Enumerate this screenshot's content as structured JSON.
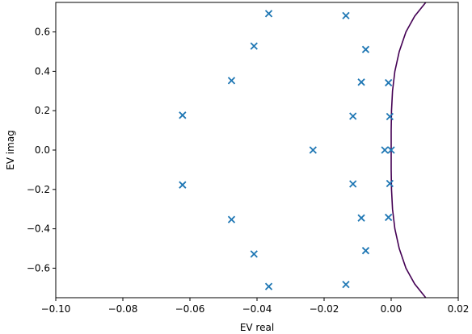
{
  "chart_data": {
    "type": "scatter",
    "xlabel": "EV real",
    "ylabel": "EV imag",
    "xlim": [
      -0.1,
      0.02
    ],
    "ylim": [
      -0.75,
      0.75
    ],
    "xticks": [
      -0.1,
      -0.08,
      -0.06,
      -0.04,
      -0.02,
      0.0,
      0.02
    ],
    "xtick_labels": [
      "−0.10",
      "−0.08",
      "−0.06",
      "−0.04",
      "−0.02",
      "0.00",
      "0.02"
    ],
    "yticks": [
      -0.6,
      -0.4,
      -0.2,
      0.0,
      0.2,
      0.4,
      0.6
    ],
    "ytick_labels": [
      "−0.6",
      "−0.4",
      "−0.2",
      "0.0",
      "0.2",
      "0.4",
      "0.6"
    ],
    "grid": false,
    "colors": {
      "markers": "#1f77b4",
      "curve": "#440154",
      "axes": "#000000"
    },
    "marker": "x",
    "points": [
      {
        "x": -0.0365,
        "y": 0.693
      },
      {
        "x": -0.0135,
        "y": 0.683
      },
      {
        "x": -0.0409,
        "y": 0.528
      },
      {
        "x": -0.0076,
        "y": 0.511
      },
      {
        "x": -0.0476,
        "y": 0.353
      },
      {
        "x": -0.0089,
        "y": 0.345
      },
      {
        "x": -0.0008,
        "y": 0.342
      },
      {
        "x": -0.0622,
        "y": 0.177
      },
      {
        "x": -0.0114,
        "y": 0.172
      },
      {
        "x": -0.0004,
        "y": 0.17
      },
      {
        "x": -0.0233,
        "y": 0.0
      },
      {
        "x": -0.0019,
        "y": 0.0
      },
      {
        "x": 0.0,
        "y": 0.0
      },
      {
        "x": -0.0622,
        "y": -0.177
      },
      {
        "x": -0.0114,
        "y": -0.172
      },
      {
        "x": -0.0004,
        "y": -0.17
      },
      {
        "x": -0.0476,
        "y": -0.353
      },
      {
        "x": -0.0089,
        "y": -0.345
      },
      {
        "x": -0.0008,
        "y": -0.342
      },
      {
        "x": -0.0409,
        "y": -0.528
      },
      {
        "x": -0.0076,
        "y": -0.511
      },
      {
        "x": -0.0365,
        "y": -0.693
      },
      {
        "x": -0.0135,
        "y": -0.683
      }
    ],
    "curve": [
      {
        "x": 0.0103,
        "y": -0.75
      },
      {
        "x": 0.007,
        "y": -0.68
      },
      {
        "x": 0.0044,
        "y": -0.6
      },
      {
        "x": 0.0024,
        "y": -0.5
      },
      {
        "x": 0.0011,
        "y": -0.4
      },
      {
        "x": 0.0004,
        "y": -0.3
      },
      {
        "x": 0.0001,
        "y": -0.2
      },
      {
        "x": 0.0,
        "y": -0.1
      },
      {
        "x": 0.0,
        "y": 0.0
      },
      {
        "x": 0.0,
        "y": 0.1
      },
      {
        "x": 0.0001,
        "y": 0.2
      },
      {
        "x": 0.0004,
        "y": 0.3
      },
      {
        "x": 0.0011,
        "y": 0.4
      },
      {
        "x": 0.0024,
        "y": 0.5
      },
      {
        "x": 0.0044,
        "y": 0.6
      },
      {
        "x": 0.007,
        "y": 0.68
      },
      {
        "x": 0.0103,
        "y": 0.75
      }
    ]
  }
}
